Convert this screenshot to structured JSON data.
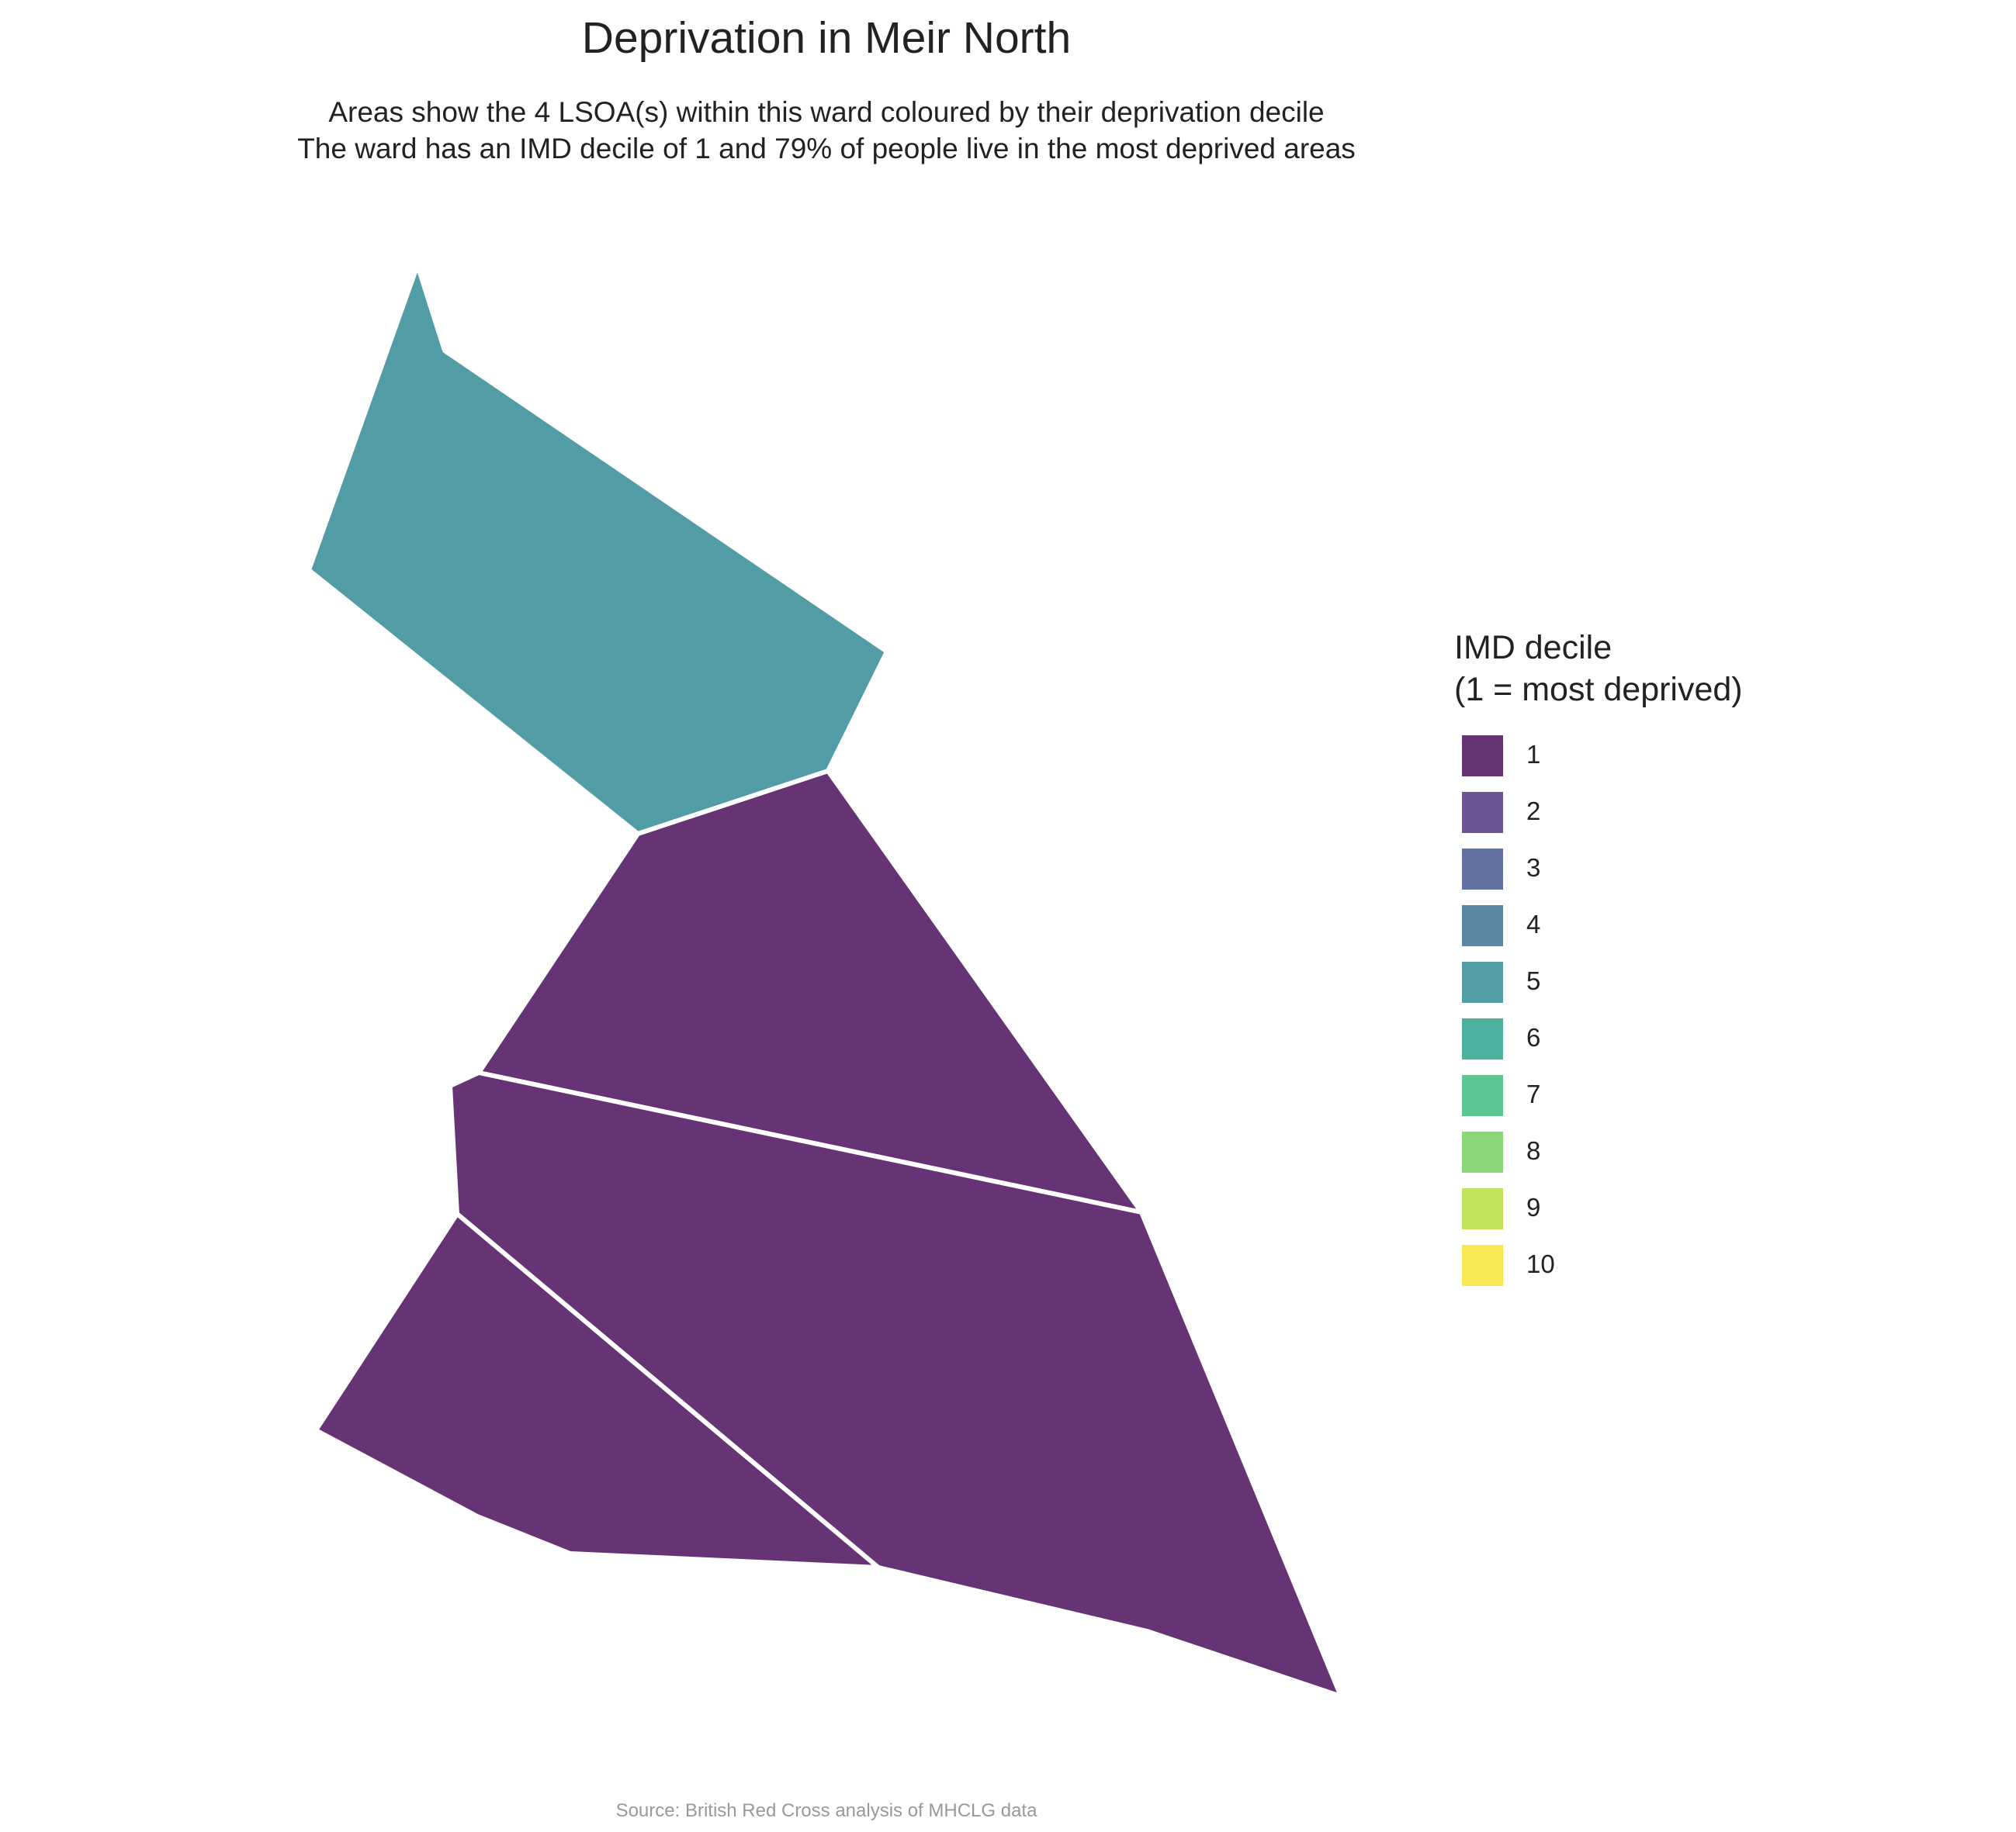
{
  "title": "Deprivation in Meir North",
  "subtitle_line1": "Areas show the 4 LSOA(s) within this ward coloured by their deprivation decile",
  "subtitle_line2": "The ward has an IMD decile of 1 and 79% of people live in the most deprived areas",
  "caption": "Source: British Red Cross analysis of MHCLG data",
  "legend": {
    "title_line1": "IMD decile",
    "title_line2": "(1 = most deprived)",
    "items": [
      {
        "label": "1",
        "color": "#663474"
      },
      {
        "label": "2",
        "color": "#6D5492"
      },
      {
        "label": "3",
        "color": "#6470A0"
      },
      {
        "label": "4",
        "color": "#5A87A4"
      },
      {
        "label": "5",
        "color": "#519CA5"
      },
      {
        "label": "6",
        "color": "#4DB1A0"
      },
      {
        "label": "7",
        "color": "#5EC690"
      },
      {
        "label": "8",
        "color": "#8BD676"
      },
      {
        "label": "9",
        "color": "#C2E45C"
      },
      {
        "label": "10",
        "color": "#F7E752"
      }
    ]
  },
  "regions": [
    {
      "id": "lsoa-north",
      "decile": 5,
      "color": "#519CA5"
    },
    {
      "id": "lsoa-middle",
      "decile": 1,
      "color": "#663474"
    },
    {
      "id": "lsoa-southeast",
      "decile": 1,
      "color": "#663474"
    },
    {
      "id": "lsoa-southwest",
      "decile": 1,
      "color": "#663474"
    }
  ]
}
